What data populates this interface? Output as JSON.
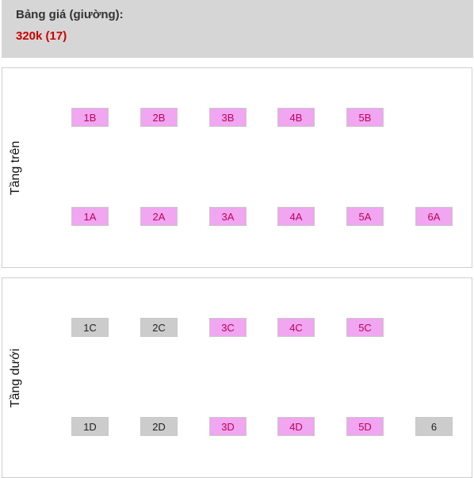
{
  "price_header": {
    "title": "Bảng giá (giường):",
    "price": "320k (17)"
  },
  "colors": {
    "available_bg": "#f0a6f0",
    "available_text": "#c1005a",
    "booked_bg": "#cccccc",
    "price_text": "#cc0000"
  },
  "upper_deck": {
    "label": "Tầng trên",
    "seats": [
      {
        "label": "1B",
        "status": "available"
      },
      {
        "label": "2B",
        "status": "available"
      },
      {
        "label": "3B",
        "status": "available"
      },
      {
        "label": "4B",
        "status": "available"
      },
      {
        "label": "5B",
        "status": "available"
      },
      {
        "label": "1A",
        "status": "available"
      },
      {
        "label": "2A",
        "status": "available"
      },
      {
        "label": "3A",
        "status": "available"
      },
      {
        "label": "4A",
        "status": "available"
      },
      {
        "label": "5A",
        "status": "available"
      },
      {
        "label": "6A",
        "status": "available"
      }
    ]
  },
  "lower_deck": {
    "label": "Tầng dưới",
    "seats": [
      {
        "label": "1C",
        "status": "booked"
      },
      {
        "label": "2C",
        "status": "booked"
      },
      {
        "label": "3C",
        "status": "available"
      },
      {
        "label": "4C",
        "status": "available"
      },
      {
        "label": "5C",
        "status": "available"
      },
      {
        "label": "1D",
        "status": "booked"
      },
      {
        "label": "2D",
        "status": "booked"
      },
      {
        "label": "3D",
        "status": "available"
      },
      {
        "label": "4D",
        "status": "available"
      },
      {
        "label": "5D",
        "status": "available"
      },
      {
        "label": "6",
        "status": "booked"
      }
    ]
  }
}
